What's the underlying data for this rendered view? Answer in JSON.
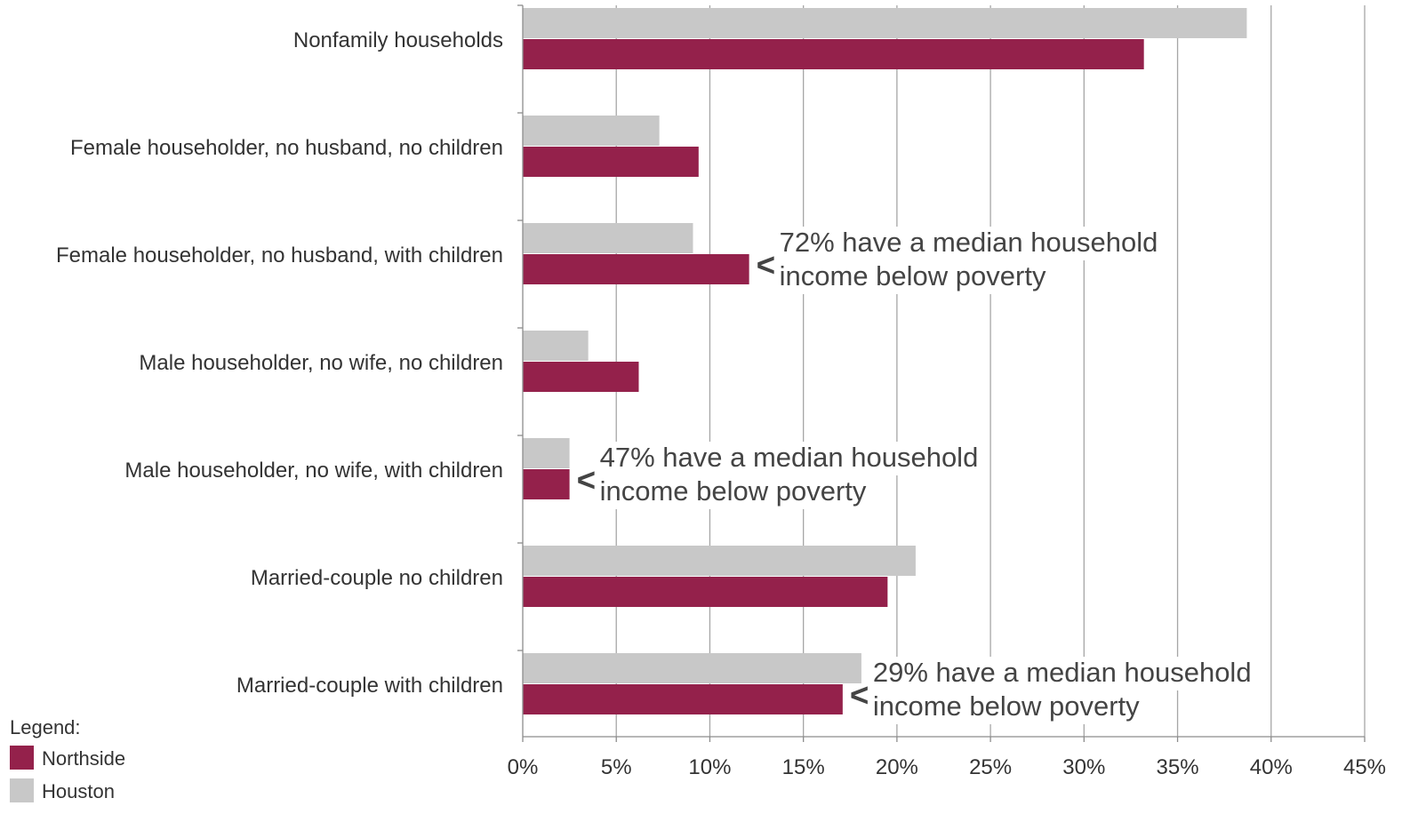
{
  "chart_data": {
    "type": "bar",
    "orientation": "horizontal",
    "categories": [
      "Nonfamily households",
      "Female householder, no husband, no children",
      "Female householder, no husband, with children",
      "Male householder, no wife, no children",
      "Male householder, no wife, with children",
      "Married-couple no children",
      "Married-couple with children"
    ],
    "series": [
      {
        "name": "Houston",
        "color": "#c8c8c8",
        "values": [
          38.7,
          7.3,
          9.1,
          3.5,
          2.5,
          21.0,
          18.1
        ]
      },
      {
        "name": "Northside",
        "color": "#94214b",
        "values": [
          33.2,
          9.4,
          12.1,
          6.2,
          2.5,
          19.5,
          17.1
        ]
      }
    ],
    "x_ticks": [
      "0%",
      "5%",
      "10%",
      "15%",
      "20%",
      "25%",
      "30%",
      "35%",
      "40%",
      "45%"
    ],
    "xlim": [
      0,
      45
    ],
    "grid": true,
    "annotations": [
      {
        "category_index": 2,
        "arrow": "<",
        "lines": [
          "72% have a median household",
          "income below poverty"
        ]
      },
      {
        "category_index": 4,
        "arrow": "<",
        "lines": [
          "47% have a median household",
          "income below poverty"
        ]
      },
      {
        "category_index": 6,
        "arrow": "<",
        "lines": [
          "29% have a median household",
          "income below poverty"
        ]
      }
    ],
    "legend": {
      "title": "Legend:",
      "position": "bottom-left",
      "items": [
        {
          "label": "Northside",
          "color": "#94214b"
        },
        {
          "label": "Houston",
          "color": "#c8c8c8"
        }
      ]
    }
  }
}
